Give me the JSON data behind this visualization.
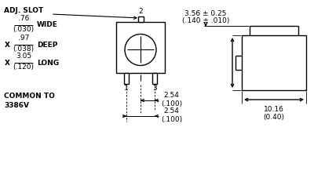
{
  "bg_color": "#ffffff",
  "line_color": "#000000",
  "text_color": "#000000",
  "fig_width": 4.0,
  "fig_height": 2.18,
  "dpi": 100,
  "labels": {
    "adj_slot": "ADJ. SLOT",
    "wide_frac_top": ".76",
    "wide_frac_bot": "(.030)",
    "wide_label": "WIDE",
    "deep_frac_top": ".97",
    "deep_frac_bot": "(.038)",
    "deep_label": "DEEP",
    "long_frac_top": "3.05",
    "long_frac_bot": "(.120)",
    "long_label": "LONG",
    "common": "COMMON TO\n3386V",
    "pin2": "2",
    "pin1": "1",
    "pin3": "3",
    "dim_top": "3.56 ± 0.25",
    "dim_top2": "(.140 ± .010)",
    "dim_h1": "2.54\n(.100)",
    "dim_h2": "2.54\n(.100)",
    "dim_bottom": "10.16\n(0.40)",
    "x_label": "X"
  }
}
